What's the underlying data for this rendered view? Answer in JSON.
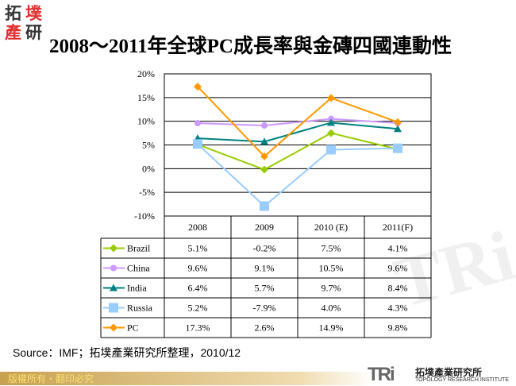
{
  "logo": {
    "chars": [
      "拓",
      "墣",
      "產",
      "研"
    ]
  },
  "title": "2008～2011年全球PC成長率與金磚四國連動性",
  "chart_data": {
    "type": "line",
    "title": "2008～2011年全球PC成長率與金磚四國連動性",
    "categories": [
      "2008",
      "2009",
      "2010 (E)",
      "2011(F)"
    ],
    "ylim": [
      -10,
      20
    ],
    "yticks": [
      "20%",
      "15%",
      "10%",
      "5%",
      "0%",
      "-5%",
      "-10%"
    ],
    "grid": true,
    "legend": "table-left",
    "series": [
      {
        "name": "Brazil",
        "values": [
          5.1,
          -0.2,
          7.5,
          4.1
        ],
        "labels": [
          "5.1%",
          "-0.2%",
          "7.5%",
          "4.1%"
        ],
        "color": "#99cc00",
        "marker": "diamond"
      },
      {
        "name": "China",
        "values": [
          9.6,
          9.1,
          10.5,
          9.6
        ],
        "labels": [
          "9.6%",
          "9.1%",
          "10.5%",
          "9.6%"
        ],
        "color": "#cc99ff",
        "marker": "circle"
      },
      {
        "name": "India",
        "values": [
          6.4,
          5.7,
          9.7,
          8.4
        ],
        "labels": [
          "6.4%",
          "5.7%",
          "9.7%",
          "8.4%"
        ],
        "color": "#008080",
        "marker": "triangle"
      },
      {
        "name": "Russia",
        "values": [
          5.2,
          -7.9,
          4.0,
          4.3
        ],
        "labels": [
          "5.2%",
          "-7.9%",
          "4.0%",
          "4.3%"
        ],
        "color": "#99ccff",
        "marker": "square"
      },
      {
        "name": "PC",
        "values": [
          17.3,
          2.6,
          14.9,
          9.8
        ],
        "labels": [
          "17.3%",
          "2.6%",
          "14.9%",
          "9.8%"
        ],
        "color": "#ff9900",
        "marker": "diamond"
      }
    ]
  },
  "source": "Source：IMF；拓墣產業研究所整理，2010/12",
  "footer": {
    "copyright": "版權所有・翻印必究",
    "brand_short": "TRi",
    "brand_cn": "拓墣產業研究所",
    "brand_en": "TOPOLOGY RESEARCH INSTITUTE"
  }
}
